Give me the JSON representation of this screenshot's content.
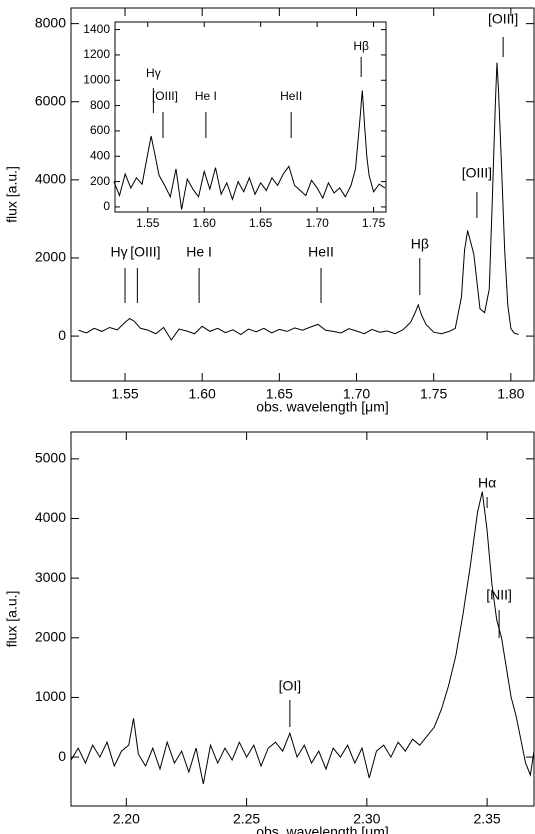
{
  "chart_data": [
    {
      "type": "line",
      "xlabel": "obs. wavelength [μm]",
      "ylabel": "flux [a.u.]",
      "color": "#000000",
      "xlim": [
        1.515,
        1.815
      ],
      "ylim": [
        -1150,
        8400
      ],
      "xticks": [
        1.55,
        {
          "value": 1.6,
          "label": "1.60"
        },
        1.65,
        {
          "value": 1.7,
          "label": "1.70"
        },
        1.75,
        {
          "value": 1.8,
          "label": "1.80"
        }
      ],
      "yticks": [
        0,
        2000,
        4000,
        6000,
        8000
      ],
      "x": [
        1.52,
        1.525,
        1.53,
        1.535,
        1.54,
        1.545,
        1.55,
        1.553,
        1.556,
        1.56,
        1.565,
        1.57,
        1.575,
        1.58,
        1.585,
        1.59,
        1.595,
        1.6,
        1.605,
        1.61,
        1.615,
        1.62,
        1.625,
        1.63,
        1.635,
        1.64,
        1.645,
        1.65,
        1.655,
        1.66,
        1.665,
        1.67,
        1.675,
        1.68,
        1.685,
        1.69,
        1.695,
        1.7,
        1.705,
        1.71,
        1.715,
        1.72,
        1.725,
        1.73,
        1.735,
        1.738,
        1.74,
        1.742,
        1.745,
        1.75,
        1.755,
        1.76,
        1.764,
        1.766,
        1.768,
        1.77,
        1.772,
        1.774,
        1.776,
        1.778,
        1.78,
        1.783,
        1.786,
        1.788,
        1.79,
        1.791,
        1.792,
        1.794,
        1.796,
        1.798,
        1.8,
        1.802,
        1.805
      ],
      "values": [
        150,
        80,
        200,
        120,
        220,
        160,
        350,
        450,
        380,
        200,
        150,
        60,
        220,
        -100,
        180,
        130,
        60,
        250,
        120,
        200,
        90,
        160,
        40,
        180,
        110,
        200,
        80,
        170,
        120,
        210,
        150,
        230,
        300,
        150,
        120,
        80,
        190,
        130,
        60,
        170,
        100,
        130,
        60,
        160,
        350,
        600,
        800,
        550,
        300,
        100,
        60,
        120,
        200,
        600,
        1000,
        2200,
        2700,
        2400,
        2100,
        1400,
        700,
        600,
        1200,
        3500,
        6000,
        7000,
        6300,
        4300,
        2200,
        800,
        200,
        80,
        40
      ],
      "annotations": [
        {
          "label": "Hγ",
          "x": 1.55
        },
        {
          "label": "[OIII]",
          "x": 1.558
        },
        {
          "label": "He I",
          "x": 1.598
        },
        {
          "label": "HeII",
          "x": 1.677
        },
        {
          "label": "Hβ",
          "x": 1.741
        },
        {
          "label": "[OIII]",
          "x": 1.778
        },
        {
          "label": "[OIII]",
          "x": 1.795
        }
      ]
    },
    {
      "type": "line",
      "color": "#000000",
      "xlim": [
        1.521,
        1.761
      ],
      "ylim": [
        -40,
        1460
      ],
      "xticks": [
        1.55,
        {
          "value": 1.6,
          "label": "1.60"
        },
        1.65,
        {
          "value": 1.7,
          "label": "1.70"
        },
        1.75
      ],
      "yticks": [
        0,
        200,
        400,
        600,
        800,
        1000,
        1200,
        1400
      ],
      "x": [
        1.52,
        1.525,
        1.53,
        1.535,
        1.54,
        1.545,
        1.55,
        1.553,
        1.556,
        1.56,
        1.565,
        1.57,
        1.575,
        1.58,
        1.585,
        1.59,
        1.595,
        1.6,
        1.605,
        1.61,
        1.615,
        1.62,
        1.625,
        1.63,
        1.635,
        1.64,
        1.645,
        1.65,
        1.655,
        1.66,
        1.665,
        1.67,
        1.675,
        1.68,
        1.685,
        1.69,
        1.695,
        1.7,
        1.705,
        1.71,
        1.715,
        1.72,
        1.725,
        1.73,
        1.734,
        1.736,
        1.738,
        1.74,
        1.742,
        1.744,
        1.746,
        1.75,
        1.755,
        1.76
      ],
      "values": [
        200,
        90,
        260,
        150,
        230,
        180,
        420,
        560,
        430,
        250,
        170,
        80,
        300,
        -20,
        220,
        140,
        80,
        280,
        140,
        310,
        100,
        190,
        60,
        200,
        120,
        230,
        100,
        190,
        130,
        230,
        170,
        260,
        320,
        170,
        130,
        90,
        210,
        150,
        70,
        190,
        110,
        150,
        80,
        170,
        300,
        500,
        700,
        920,
        650,
        400,
        250,
        120,
        180,
        150
      ],
      "annotations": [
        {
          "label": "Hγ",
          "x": 1.555
        },
        {
          "label": "[OIII]",
          "x": 1.5635
        },
        {
          "label": "He I",
          "x": 1.6015
        },
        {
          "label": "HeII",
          "x": 1.677
        },
        {
          "label": "Hβ",
          "x": 1.739
        }
      ]
    },
    {
      "type": "line",
      "xlabel": "obs. wavelength [μm]",
      "ylabel": "flux [a.u.]",
      "color": "#000000",
      "xlim": [
        2.177,
        2.3695
      ],
      "ylim": [
        -820,
        5450
      ],
      "xticks": [
        {
          "value": 2.2,
          "label": "2.20"
        },
        2.25,
        {
          "value": 2.3,
          "label": "2.30"
        },
        2.35
      ],
      "yticks": [
        0,
        1000,
        2000,
        3000,
        4000,
        5000
      ],
      "x": [
        2.177,
        2.18,
        2.183,
        2.186,
        2.189,
        2.192,
        2.195,
        2.198,
        2.201,
        2.203,
        2.205,
        2.208,
        2.211,
        2.214,
        2.217,
        2.22,
        2.223,
        2.226,
        2.229,
        2.232,
        2.235,
        2.238,
        2.241,
        2.244,
        2.247,
        2.25,
        2.253,
        2.256,
        2.259,
        2.262,
        2.265,
        2.268,
        2.271,
        2.274,
        2.277,
        2.28,
        2.283,
        2.286,
        2.289,
        2.292,
        2.295,
        2.298,
        2.301,
        2.304,
        2.307,
        2.31,
        2.313,
        2.316,
        2.319,
        2.322,
        2.325,
        2.328,
        2.331,
        2.334,
        2.337,
        2.34,
        2.343,
        2.346,
        2.348,
        2.35,
        2.352,
        2.354,
        2.356,
        2.358,
        2.36,
        2.362,
        2.364,
        2.366,
        2.368,
        2.3695
      ],
      "values": [
        -50,
        150,
        -100,
        200,
        0,
        250,
        -150,
        100,
        200,
        650,
        50,
        -150,
        150,
        -200,
        250,
        -100,
        100,
        -250,
        150,
        -450,
        200,
        -100,
        150,
        -50,
        250,
        0,
        200,
        -150,
        150,
        250,
        100,
        400,
        0,
        200,
        -100,
        100,
        -200,
        150,
        0,
        200,
        -100,
        150,
        -350,
        100,
        200,
        0,
        250,
        100,
        300,
        200,
        350,
        500,
        800,
        1200,
        1700,
        2400,
        3200,
        4100,
        4450,
        3800,
        2900,
        2300,
        2000,
        1500,
        1000,
        700,
        300,
        -100,
        -300,
        100
      ],
      "annotations": [
        {
          "label": "[OI]",
          "x": 2.268
        },
        {
          "label": "Hα",
          "x": 2.35
        },
        {
          "label": "[NII]",
          "x": 2.355
        }
      ]
    }
  ]
}
